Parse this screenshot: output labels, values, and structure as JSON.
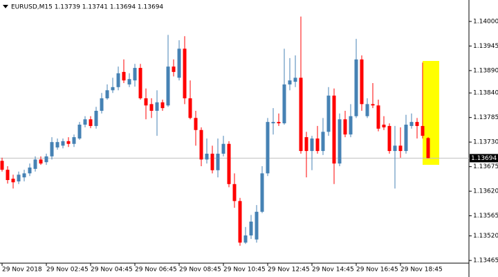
{
  "chart_data": {
    "type": "candlestick",
    "title": "EURUSD,M15  1.13739 1.13741 1.13694 1.13694",
    "categories": [
      "29 Nov 2018",
      null,
      null,
      null,
      null,
      null,
      null,
      null,
      "29 Nov 02:45",
      null,
      null,
      null,
      null,
      null,
      null,
      null,
      "29 Nov 04:45",
      null,
      null,
      null,
      null,
      null,
      null,
      null,
      "29 Nov 06:45",
      null,
      null,
      null,
      null,
      null,
      null,
      null,
      "29 Nov 08:45",
      null,
      null,
      null,
      null,
      null,
      null,
      null,
      "29 Nov 10:45",
      null,
      null,
      null,
      null,
      null,
      null,
      null,
      "29 Nov 12:45",
      null,
      null,
      null,
      null,
      null,
      null,
      null,
      "29 Nov 14:45",
      null,
      null,
      null,
      null,
      null,
      null,
      null,
      "29 Nov 16:45",
      null,
      null,
      null,
      null,
      null,
      null,
      null,
      "29 Nov 18:45",
      null,
      null,
      null,
      null,
      null
    ],
    "open": [
      1.13688,
      1.13668,
      1.13648,
      1.13642,
      1.13651,
      1.1366,
      1.1367,
      1.13691,
      1.13685,
      1.13698,
      1.13718,
      1.13722,
      1.13732,
      1.13726,
      1.13738,
      1.13769,
      1.13781,
      1.13766,
      1.138,
      1.13828,
      1.13846,
      1.13853,
      1.13887,
      1.13859,
      1.13868,
      1.13896,
      1.13828,
      1.13815,
      1.138,
      1.13819,
      1.13812,
      1.13899,
      1.13874,
      1.13939,
      1.13828,
      1.13784,
      1.13757,
      1.13691,
      1.13704,
      1.13667,
      1.13704,
      1.13726,
      1.13636,
      1.13598,
      1.13505,
      1.13521,
      1.13512,
      1.13574,
      1.1366,
      1.13772,
      1.13775,
      1.13772,
      1.13859,
      1.13865,
      1.13874,
      1.13741,
      1.1371,
      1.13738,
      1.1371,
      1.13753,
      1.13834,
      1.13682,
      1.13781,
      1.13747,
      1.13788,
      1.13915,
      1.13788,
      1.13815,
      1.13812,
      1.13769,
      1.13766,
      1.1371,
      1.13722,
      1.1371,
      1.13766,
      1.13775,
      1.13766,
      1.13739
    ],
    "high": [
      1.13695,
      1.13676,
      1.13657,
      1.13664,
      1.13668,
      1.13682,
      1.13698,
      1.13698,
      1.13704,
      1.13741,
      1.13738,
      1.13738,
      1.13741,
      1.13747,
      1.13775,
      1.13788,
      1.13788,
      1.13809,
      1.1384,
      1.13859,
      1.13874,
      1.13899,
      1.13915,
      1.13884,
      1.13905,
      1.13905,
      1.1385,
      1.13828,
      1.13846,
      1.13825,
      1.1397,
      1.13915,
      1.13958,
      1.13967,
      1.13868,
      1.138,
      1.13763,
      1.13738,
      1.13722,
      1.13738,
      1.13744,
      1.13732,
      1.1366,
      1.13605,
      1.1354,
      1.13567,
      1.13589,
      1.13676,
      1.13784,
      1.13806,
      1.13794,
      1.13939,
      1.13918,
      1.13924,
      1.14011,
      1.13753,
      1.13744,
      1.13766,
      1.13784,
      1.13853,
      1.1385,
      1.13794,
      1.138,
      1.13815,
      1.13961,
      1.13924,
      1.13828,
      1.13862,
      1.13825,
      1.13788,
      1.13772,
      1.13766,
      1.13763,
      1.13791,
      1.13794,
      1.13784,
      1.13908,
      1.13741
    ],
    "low": [
      1.13664,
      1.13637,
      1.13626,
      1.13636,
      1.13642,
      1.13654,
      1.13664,
      1.13679,
      1.13679,
      1.13691,
      1.13713,
      1.13716,
      1.13719,
      1.13719,
      1.13735,
      1.13763,
      1.13761,
      1.1376,
      1.13794,
      1.13825,
      1.1384,
      1.13846,
      1.13862,
      1.13853,
      1.13854,
      1.13825,
      1.13781,
      1.13784,
      1.13744,
      1.138,
      1.13809,
      1.13877,
      1.13868,
      1.13815,
      1.13781,
      1.13722,
      1.13676,
      1.13682,
      1.1366,
      1.13651,
      1.13698,
      1.13629,
      1.13583,
      1.13498,
      1.13502,
      1.13513,
      1.13505,
      1.13571,
      1.13654,
      1.13747,
      1.13766,
      1.13769,
      1.13846,
      1.13853,
      1.13704,
      1.13651,
      1.13667,
      1.13704,
      1.13701,
      1.13744,
      1.13636,
      1.13676,
      1.13741,
      1.13741,
      1.13784,
      1.138,
      1.13784,
      1.13806,
      1.13754,
      1.13757,
      1.13704,
      1.13626,
      1.13695,
      1.13704,
      1.1376,
      1.13738,
      1.13738,
      1.13694
    ],
    "close": [
      1.13668,
      1.13645,
      1.1364,
      1.13657,
      1.1366,
      1.13673,
      1.13691,
      1.13682,
      1.13698,
      1.1373,
      1.1373,
      1.13732,
      1.13726,
      1.13741,
      1.13769,
      1.13781,
      1.13766,
      1.138,
      1.13828,
      1.13846,
      1.13853,
      1.13884,
      1.13868,
      1.13871,
      1.13896,
      1.13828,
      1.13812,
      1.138,
      1.13819,
      1.13806,
      1.13899,
      1.13887,
      1.13939,
      1.13828,
      1.13784,
      1.13757,
      1.13691,
      1.13704,
      1.13667,
      1.13704,
      1.13726,
      1.13636,
      1.13598,
      1.13505,
      1.13521,
      1.13552,
      1.13574,
      1.1366,
      1.13775,
      1.13775,
      1.13772,
      1.13859,
      1.13868,
      1.13874,
      1.1371,
      1.1371,
      1.13738,
      1.1371,
      1.13753,
      1.13834,
      1.13682,
      1.13781,
      1.13747,
      1.13788,
      1.13915,
      1.13815,
      1.13815,
      1.13812,
      1.1376,
      1.13763,
      1.1371,
      1.13722,
      1.1371,
      1.13769,
      1.13775,
      1.13766,
      1.13744,
      1.13694
    ],
    "up_color": "#4682b4",
    "down_color": "#ff0000",
    "ylim": [
      1.13459,
      1.14048
    ],
    "yticks": [
      {
        "value": 1.14,
        "label": "1.14000"
      },
      1.13945,
      {
        "value": 1.1389,
        "label": "1.13890"
      },
      {
        "value": 1.1384,
        "label": "1.13840"
      },
      1.13785,
      {
        "value": 1.1373,
        "label": "1.13730"
      },
      1.13675,
      {
        "value": 1.1362,
        "label": "1.13620"
      },
      1.13565,
      {
        "value": 1.1352,
        "label": "1.13520"
      },
      1.13465
    ],
    "last_price": 1.13694
  }
}
